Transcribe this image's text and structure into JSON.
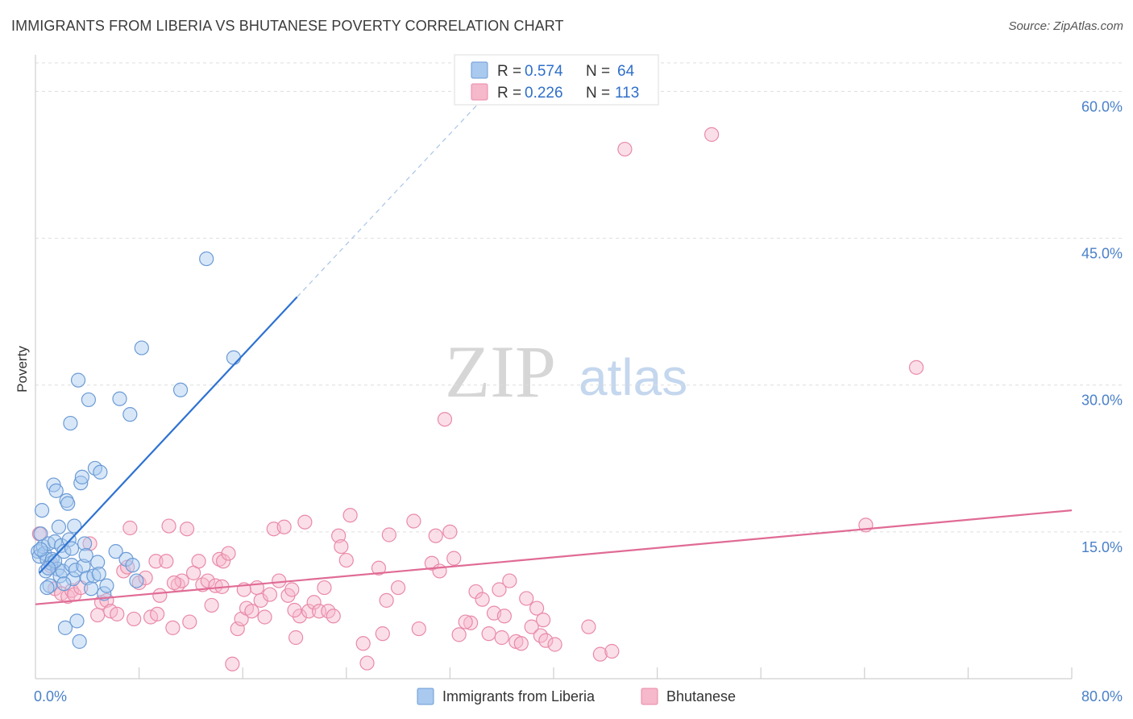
{
  "title": "IMMIGRANTS FROM LIBERIA VS BHUTANESE POVERTY CORRELATION CHART",
  "source": "Source: ZipAtlas.com",
  "watermark": {
    "zip": "ZIP",
    "atlas": "atlas"
  },
  "colors": {
    "blue_fill": "#a9c9ef",
    "blue_stroke": "#6b9bd6",
    "blue_line": "#2e72d2",
    "pink_fill": "#f6b8cb",
    "pink_stroke": "#e98aa8",
    "pink_line": "#e06b95",
    "tick_label": "#4a80c8",
    "grid": "#dddddd"
  },
  "legend": {
    "rows": [
      {
        "r_label": "R = ",
        "r_value": "0.574",
        "n_label": "N = ",
        "n_value": "64"
      },
      {
        "r_label": "R = ",
        "r_value": "0.226",
        "n_label": "N = ",
        "n_value": "113"
      }
    ]
  },
  "chart_data": {
    "type": "scatter",
    "title": "IMMIGRANTS FROM LIBERIA VS BHUTANESE POVERTY CORRELATION CHART",
    "xlabel": "",
    "ylabel": "Poverty",
    "xlim": [
      0,
      80
    ],
    "ylim": [
      0,
      63
    ],
    "x_tick_labels": [
      {
        "value": 0,
        "label": "0.0%"
      },
      {
        "value": 80,
        "label": "80.0%"
      }
    ],
    "y_tick_labels": [
      {
        "value": 15,
        "label": "15.0%"
      },
      {
        "value": 30,
        "label": "30.0%"
      },
      {
        "value": 45,
        "label": "45.0%"
      },
      {
        "value": 60,
        "label": "60.0%"
      }
    ],
    "x_minor_ticks": [
      8,
      16,
      24,
      32,
      40,
      48,
      56,
      64,
      72
    ],
    "series": [
      {
        "name": "Immigrants from Liberia",
        "r": 0.574,
        "n": 64,
        "trend": {
          "x0": 0.3,
          "y0": 10.8,
          "x1": 20.2,
          "y1": 39.0,
          "dash_x1": 34.5,
          "dash_y1": 59.2
        },
        "points": [
          [
            0.2,
            13.0
          ],
          [
            0.3,
            12.5
          ],
          [
            0.4,
            14.8
          ],
          [
            0.5,
            17.2
          ],
          [
            0.6,
            13.5
          ],
          [
            0.7,
            12.8
          ],
          [
            0.8,
            11.0
          ],
          [
            0.9,
            12.2
          ],
          [
            1.0,
            13.8
          ],
          [
            1.1,
            9.5
          ],
          [
            1.2,
            11.8
          ],
          [
            1.3,
            12.2
          ],
          [
            1.4,
            19.8
          ],
          [
            1.5,
            14.0
          ],
          [
            1.6,
            19.2
          ],
          [
            1.7,
            11.2
          ],
          [
            1.8,
            15.5
          ],
          [
            1.9,
            10.5
          ],
          [
            2.0,
            13.6
          ],
          [
            2.1,
            11.0
          ],
          [
            2.2,
            13.0
          ],
          [
            2.3,
            5.2
          ],
          [
            2.4,
            18.2
          ],
          [
            2.5,
            17.9
          ],
          [
            2.6,
            14.2
          ],
          [
            2.7,
            26.1
          ],
          [
            2.8,
            11.6
          ],
          [
            2.9,
            10.2
          ],
          [
            3.0,
            15.6
          ],
          [
            3.1,
            11.1
          ],
          [
            3.2,
            5.9
          ],
          [
            3.3,
            30.5
          ],
          [
            3.4,
            3.8
          ],
          [
            3.5,
            20.0
          ],
          [
            3.6,
            20.6
          ],
          [
            3.7,
            11.5
          ],
          [
            3.8,
            13.8
          ],
          [
            4.0,
            10.3
          ],
          [
            4.1,
            28.5
          ],
          [
            4.3,
            9.2
          ],
          [
            4.5,
            10.5
          ],
          [
            4.6,
            21.5
          ],
          [
            4.8,
            11.9
          ],
          [
            4.9,
            10.7
          ],
          [
            5.0,
            21.1
          ],
          [
            5.3,
            8.7
          ],
          [
            5.5,
            9.5
          ],
          [
            6.2,
            13.0
          ],
          [
            6.5,
            28.6
          ],
          [
            7.0,
            12.2
          ],
          [
            7.3,
            27.0
          ],
          [
            7.5,
            11.6
          ],
          [
            7.8,
            10.0
          ],
          [
            8.2,
            33.8
          ],
          [
            11.2,
            29.5
          ],
          [
            13.2,
            42.9
          ],
          [
            15.3,
            32.8
          ],
          [
            1.5,
            12.0
          ],
          [
            0.9,
            9.3
          ],
          [
            2.2,
            9.7
          ],
          [
            3.9,
            12.6
          ],
          [
            0.4,
            13.2
          ],
          [
            1.0,
            11.3
          ],
          [
            2.8,
            13.3
          ]
        ]
      },
      {
        "name": "Bhutanese",
        "r": 0.226,
        "n": 113,
        "trend": {
          "x0": 0,
          "y0": 7.6,
          "x1": 80,
          "y1": 17.2
        },
        "points": [
          [
            0.3,
            14.8
          ],
          [
            1.2,
            11.5
          ],
          [
            1.5,
            9.2
          ],
          [
            2.0,
            8.7
          ],
          [
            2.5,
            8.4
          ],
          [
            2.8,
            9.0
          ],
          [
            3.0,
            8.6
          ],
          [
            3.5,
            9.3
          ],
          [
            4.2,
            13.8
          ],
          [
            4.8,
            6.5
          ],
          [
            5.1,
            7.8
          ],
          [
            5.5,
            8.0
          ],
          [
            5.8,
            6.9
          ],
          [
            6.3,
            6.6
          ],
          [
            6.8,
            11.0
          ],
          [
            7.1,
            11.4
          ],
          [
            7.3,
            15.4
          ],
          [
            7.6,
            6.1
          ],
          [
            8.0,
            9.8
          ],
          [
            8.5,
            10.3
          ],
          [
            8.9,
            6.3
          ],
          [
            9.3,
            12.0
          ],
          [
            9.6,
            8.5
          ],
          [
            10.1,
            12.0
          ],
          [
            10.3,
            15.6
          ],
          [
            10.6,
            5.2
          ],
          [
            11.0,
            9.6
          ],
          [
            11.3,
            10.0
          ],
          [
            11.7,
            15.3
          ],
          [
            11.9,
            5.8
          ],
          [
            12.2,
            10.8
          ],
          [
            12.6,
            12.0
          ],
          [
            12.9,
            9.6
          ],
          [
            13.3,
            10.0
          ],
          [
            13.6,
            7.5
          ],
          [
            13.9,
            9.5
          ],
          [
            14.2,
            12.2
          ],
          [
            14.5,
            12.0
          ],
          [
            14.9,
            12.8
          ],
          [
            15.2,
            1.5
          ],
          [
            15.6,
            5.1
          ],
          [
            15.9,
            6.1
          ],
          [
            16.3,
            7.2
          ],
          [
            16.7,
            6.9
          ],
          [
            17.1,
            9.3
          ],
          [
            17.4,
            8.0
          ],
          [
            17.7,
            6.3
          ],
          [
            18.1,
            8.6
          ],
          [
            18.4,
            15.3
          ],
          [
            18.8,
            10.0
          ],
          [
            19.2,
            15.5
          ],
          [
            19.5,
            8.5
          ],
          [
            19.8,
            9.1
          ],
          [
            20.1,
            4.2
          ],
          [
            20.4,
            6.4
          ],
          [
            20.8,
            16.0
          ],
          [
            21.1,
            6.9
          ],
          [
            21.5,
            7.8
          ],
          [
            21.9,
            6.9
          ],
          [
            22.3,
            9.3
          ],
          [
            22.6,
            6.9
          ],
          [
            23.0,
            6.4
          ],
          [
            23.4,
            14.6
          ],
          [
            23.6,
            13.5
          ],
          [
            24.0,
            12.1
          ],
          [
            24.3,
            16.7
          ],
          [
            25.3,
            3.6
          ],
          [
            25.6,
            1.6
          ],
          [
            26.5,
            11.3
          ],
          [
            26.8,
            4.6
          ],
          [
            27.1,
            8.0
          ],
          [
            27.3,
            14.7
          ],
          [
            29.2,
            16.1
          ],
          [
            29.6,
            5.1
          ],
          [
            30.6,
            11.8
          ],
          [
            30.9,
            14.6
          ],
          [
            31.2,
            11.0
          ],
          [
            31.6,
            26.5
          ],
          [
            32.0,
            15.0
          ],
          [
            32.3,
            12.3
          ],
          [
            32.7,
            4.5
          ],
          [
            33.6,
            5.7
          ],
          [
            34.0,
            8.9
          ],
          [
            34.5,
            8.1
          ],
          [
            35.0,
            4.6
          ],
          [
            35.4,
            6.7
          ],
          [
            35.8,
            9.1
          ],
          [
            36.2,
            6.4
          ],
          [
            36.6,
            10.0
          ],
          [
            37.1,
            3.8
          ],
          [
            37.5,
            3.6
          ],
          [
            37.9,
            8.2
          ],
          [
            38.3,
            5.3
          ],
          [
            38.7,
            7.2
          ],
          [
            39.0,
            4.4
          ],
          [
            39.4,
            3.9
          ],
          [
            40.1,
            3.5
          ],
          [
            42.7,
            5.3
          ],
          [
            43.6,
            2.5
          ],
          [
            44.5,
            2.8
          ],
          [
            45.5,
            54.1
          ],
          [
            52.2,
            55.6
          ],
          [
            64.1,
            15.7
          ],
          [
            68.0,
            31.8
          ],
          [
            10.7,
            9.8
          ],
          [
            14.4,
            9.4
          ],
          [
            16.1,
            9.1
          ],
          [
            20.0,
            7.0
          ],
          [
            28.0,
            9.3
          ],
          [
            33.2,
            5.8
          ],
          [
            36.0,
            4.2
          ],
          [
            39.2,
            6.0
          ],
          [
            9.4,
            6.6
          ]
        ]
      }
    ]
  },
  "bottom_legend": {
    "items": [
      {
        "label": "Immigrants from Liberia"
      },
      {
        "label": "Bhutanese"
      }
    ]
  }
}
